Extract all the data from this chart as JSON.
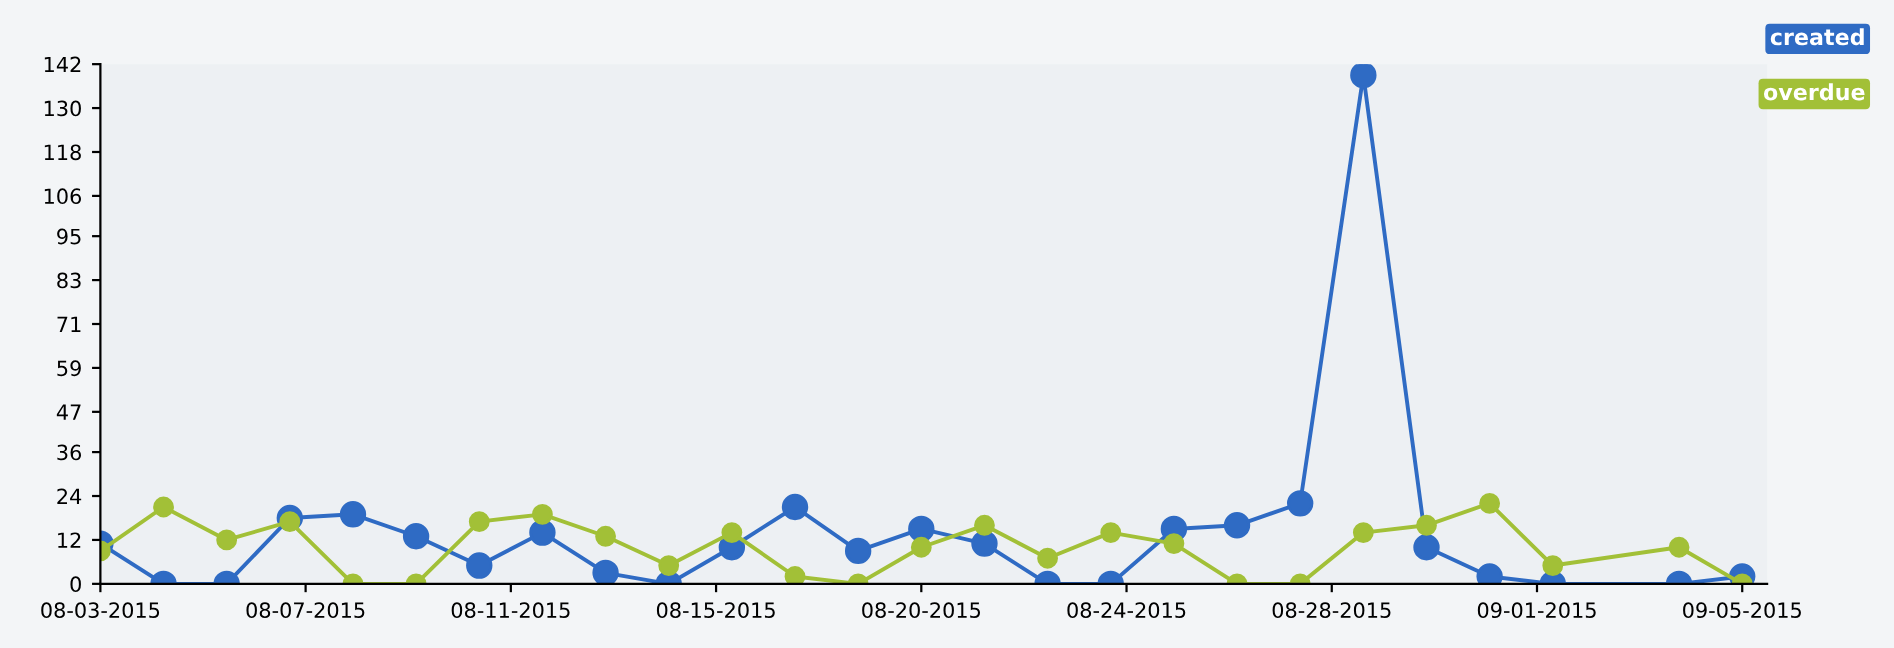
{
  "chart_data": {
    "type": "line",
    "x": [
      "2015-08-03T00:00",
      "2015-08-04T06:28",
      "2015-08-05T12:55",
      "2015-08-06T19:23",
      "2015-08-08T01:51",
      "2015-08-09T08:18",
      "2015-08-10T14:46",
      "2015-08-11T21:14",
      "2015-08-13T03:42",
      "2015-08-14T10:09",
      "2015-08-15T16:37",
      "2015-08-16T23:05",
      "2015-08-18T05:32",
      "2015-08-19T12:00",
      "2015-08-20T18:28",
      "2015-08-22T00:55",
      "2015-08-23T07:23",
      "2015-08-24T13:51",
      "2015-08-25T20:18",
      "2015-08-27T02:46",
      "2015-08-28T09:14",
      "2015-08-29T15:42",
      "2015-08-30T22:09",
      "2015-09-01T04:37",
      "2015-09-03T17:32",
      "2015-09-05T00:00"
    ],
    "series": [
      {
        "name": "created",
        "color": "#2f6bc4",
        "values": [
          11,
          0,
          0,
          18,
          19,
          13,
          5,
          14,
          3,
          0,
          10,
          21,
          9,
          15,
          11,
          0,
          0,
          15,
          16,
          22,
          139,
          10,
          2,
          0,
          0,
          2
        ]
      },
      {
        "name": "overdue",
        "color": "#a2c037",
        "values": [
          9,
          21,
          12,
          17,
          0,
          0,
          17,
          19,
          13,
          5,
          14,
          2,
          0,
          10,
          16,
          7,
          14,
          11,
          0,
          0,
          14,
          16,
          22,
          5,
          10,
          0
        ]
      }
    ],
    "xlim": [
      "2015-08-03T00:00",
      "2015-09-05T12:00"
    ],
    "xticks": [
      {
        "value": "2015-08-03T00:00",
        "label": "08-03-2015"
      },
      {
        "value": "2015-08-07T03:00",
        "label": "08-07-2015"
      },
      {
        "value": "2015-08-11T06:00",
        "label": "08-11-2015"
      },
      {
        "value": "2015-08-15T09:00",
        "label": "08-15-2015"
      },
      {
        "value": "2015-08-19T12:00",
        "label": "08-20-2015"
      },
      {
        "value": "2015-08-23T15:00",
        "label": "08-24-2015"
      },
      {
        "value": "2015-08-27T18:00",
        "label": "08-28-2015"
      },
      {
        "value": "2015-08-31T21:00",
        "label": "09-01-2015"
      },
      {
        "value": "2015-09-05T00:00",
        "label": "09-05-2015"
      }
    ],
    "ylim": [
      0,
      142
    ],
    "yticks": [
      0,
      12,
      24,
      36,
      47,
      59,
      71,
      83,
      95,
      106,
      118,
      130,
      142
    ],
    "grid": false,
    "legend": "top right",
    "marker": "circle",
    "line_style": "solid"
  }
}
